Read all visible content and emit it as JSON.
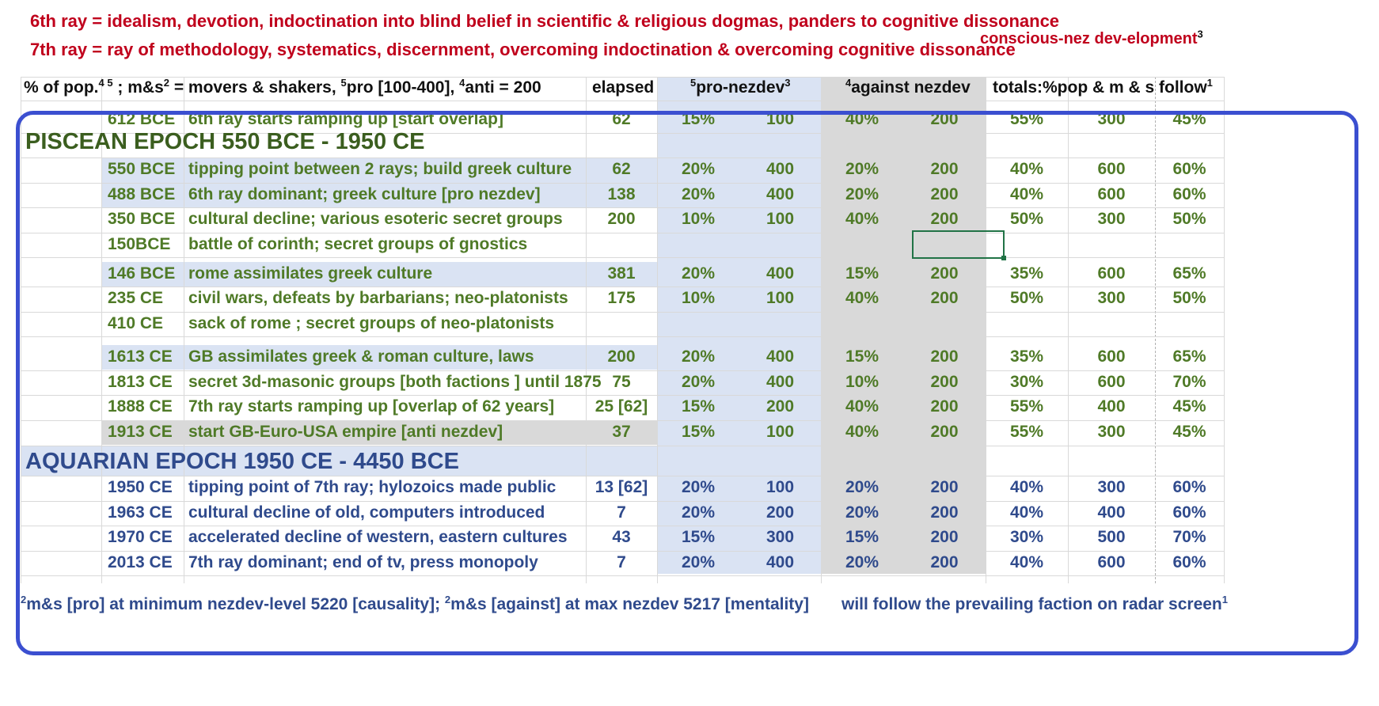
{
  "notes": {
    "ray6": "6th ray = idealism, devotion, indoctination into blind belief in scientific & religious  dogmas, panders to cognitive dissonance",
    "ray7": "7th ray = ray of methodology, systematics, discernment, overcoming indoctination & overcoming cognitive dissonance",
    "conscious": "conscious-nez dev-elopment",
    "conscious_sup": "3"
  },
  "header": {
    "pct_pop_a": "% of pop.",
    "pct_pop_sup": "4 5",
    "pct_pop_b": " ;  m&s",
    "ms_sup": "2",
    "pct_pop_c": " =  movers & shakers, ",
    "pro_sup": "5",
    "pct_pop_d": "pro [100-400], ",
    "anti_sup": "4",
    "pct_pop_e": "anti = 200",
    "elapsed": "elapsed",
    "pro_sup2": "5",
    "pro_nezdev": "pro-nezdev",
    "pro_sup3": "3",
    "against_sup": "4",
    "against_nezdev": "against nezdev",
    "totals": "totals:%pop & m & s",
    "follow": "follow",
    "follow_sup": "1"
  },
  "rows": [
    {
      "date": "612 BCE",
      "event": "6th ray starts ramping up [start overlap]",
      "elapsed": "62",
      "pro_pct": "15%",
      "pro_ms": "100",
      "anti_pct": "40%",
      "anti_ms": "200",
      "tot_pct": "55%",
      "tot_ms": "300",
      "follow": "45%"
    },
    {
      "date": "550 BCE",
      "event": "tipping point between 2 rays; build greek culture",
      "elapsed": "62",
      "pro_pct": "20%",
      "pro_ms": "400",
      "anti_pct": "20%",
      "anti_ms": "200",
      "tot_pct": "40%",
      "tot_ms": "600",
      "follow": "60%"
    },
    {
      "date": "488 BCE",
      "event": "6th ray dominant; greek culture [pro nezdev]",
      "elapsed": "138",
      "pro_pct": "20%",
      "pro_ms": "400",
      "anti_pct": "20%",
      "anti_ms": "200",
      "tot_pct": "40%",
      "tot_ms": "600",
      "follow": "60%"
    },
    {
      "date": "350 BCE",
      "event": "cultural decline; various esoteric secret groups",
      "elapsed": "200",
      "pro_pct": "10%",
      "pro_ms": "100",
      "anti_pct": "40%",
      "anti_ms": "200",
      "tot_pct": "50%",
      "tot_ms": "300",
      "follow": "50%"
    },
    {
      "date": "150BCE",
      "event": "battle of corinth; secret groups of gnostics",
      "elapsed": "",
      "pro_pct": "",
      "pro_ms": "",
      "anti_pct": "",
      "anti_ms": "",
      "tot_pct": "",
      "tot_ms": "",
      "follow": ""
    },
    {
      "date": "146 BCE",
      "event": "rome assimilates greek culture",
      "elapsed": "381",
      "pro_pct": "20%",
      "pro_ms": "400",
      "anti_pct": "15%",
      "anti_ms": "200",
      "tot_pct": "35%",
      "tot_ms": "600",
      "follow": "65%"
    },
    {
      "date": "235 CE",
      "event": "civil wars, defeats by barbarians; neo-platonists",
      "elapsed": "175",
      "pro_pct": "10%",
      "pro_ms": "100",
      "anti_pct": "40%",
      "anti_ms": "200",
      "tot_pct": "50%",
      "tot_ms": "300",
      "follow": "50%"
    },
    {
      "date": "410 CE",
      "event": "sack of rome ; secret groups of neo-platonists",
      "elapsed": "",
      "pro_pct": "",
      "pro_ms": "",
      "anti_pct": "",
      "anti_ms": "",
      "tot_pct": "",
      "tot_ms": "",
      "follow": ""
    },
    {
      "date": "1613 CE",
      "event": "GB assimilates greek & roman culture, laws",
      "elapsed": "200",
      "pro_pct": "20%",
      "pro_ms": "400",
      "anti_pct": "15%",
      "anti_ms": "200",
      "tot_pct": "35%",
      "tot_ms": "600",
      "follow": "65%"
    },
    {
      "date": "1813 CE",
      "event": "secret 3d-masonic groups [both factions ] until 1875",
      "elapsed": "75",
      "pro_pct": "20%",
      "pro_ms": "400",
      "anti_pct": "10%",
      "anti_ms": "200",
      "tot_pct": "30%",
      "tot_ms": "600",
      "follow": "70%"
    },
    {
      "date": "1888 CE",
      "event": "7th ray starts ramping up [overlap of 62 years]",
      "elapsed": "25 [62]",
      "pro_pct": "15%",
      "pro_ms": "200",
      "anti_pct": "40%",
      "anti_ms": "200",
      "tot_pct": "55%",
      "tot_ms": "400",
      "follow": "45%"
    },
    {
      "date": "1913 CE",
      "event": "start GB-Euro-USA empire [anti nezdev]",
      "elapsed": "37",
      "pro_pct": "15%",
      "pro_ms": "100",
      "anti_pct": "40%",
      "anti_ms": "200",
      "tot_pct": "55%",
      "tot_ms": "300",
      "follow": "45%"
    },
    {
      "date": "1950 CE",
      "event": "tipping point of 7th ray; hylozoics made public",
      "elapsed": "13 [62]",
      "pro_pct": "20%",
      "pro_ms": "100",
      "anti_pct": "20%",
      "anti_ms": "200",
      "tot_pct": "40%",
      "tot_ms": "300",
      "follow": "60%"
    },
    {
      "date": "1963 CE",
      "event": "cultural decline of old, computers introduced",
      "elapsed": "7",
      "pro_pct": "20%",
      "pro_ms": "200",
      "anti_pct": "20%",
      "anti_ms": "200",
      "tot_pct": "40%",
      "tot_ms": "400",
      "follow": "60%"
    },
    {
      "date": "1970 CE",
      "event": "accelerated decline of western, eastern cultures",
      "elapsed": "43",
      "pro_pct": "15%",
      "pro_ms": "300",
      "anti_pct": "15%",
      "anti_ms": "200",
      "tot_pct": "30%",
      "tot_ms": "500",
      "follow": "70%"
    },
    {
      "date": "2013 CE",
      "event": "7th ray dominant; end of tv, press monopoly",
      "elapsed": "7",
      "pro_pct": "20%",
      "pro_ms": "400",
      "anti_pct": "20%",
      "anti_ms": "200",
      "tot_pct": "40%",
      "tot_ms": "600",
      "follow": "60%"
    }
  ],
  "epochs": {
    "piscean": "PISCEAN EPOCH 550 BCE - 1950 CE",
    "aquarian": "AQUARIAN EPOCH 1950 CE - 4450 BCE"
  },
  "footer": {
    "sup_a": "2",
    "text_a": "m&s [pro] at minimum nezdev-level 5220 [causality];  ",
    "sup_b": "2",
    "text_b": "m&s [against] at max nezdev 5217 [mentality]",
    "text_c": "will follow the prevailing faction on radar screen",
    "sup_c": "1"
  },
  "colors": {
    "red_note": "#c0001c",
    "green_text": "#4f7a27",
    "blue_text": "#2f4a8c",
    "pro_column_bg": "#dae3f3",
    "against_column_bg": "#d9d9d9",
    "frame": "#3b4fd0"
  }
}
